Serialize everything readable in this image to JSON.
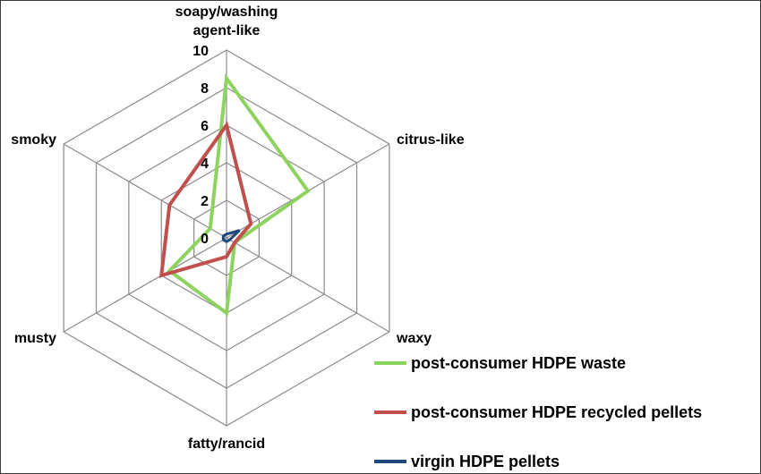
{
  "chart_data": {
    "type": "radar",
    "axes": [
      "soapy/washing agent-like",
      "citrus-like",
      "waxy",
      "fatty/rancid",
      "musty",
      "smoky"
    ],
    "axis_label_lines": [
      [
        "soapy/washing",
        "agent-like"
      ],
      [
        "citrus-like"
      ],
      [
        "waxy"
      ],
      [
        "fatty/rancid"
      ],
      [
        "musty"
      ],
      [
        "smoky"
      ]
    ],
    "rlim": [
      0,
      10
    ],
    "ticks": [
      "0",
      "2",
      "4",
      "6",
      "8",
      "10"
    ],
    "tick_values": [
      0,
      2,
      4,
      6,
      8,
      10
    ],
    "grid": true,
    "legend_position": "bottom-right",
    "series": [
      {
        "name": "post-consumer HDPE waste",
        "color": "#8dd35f",
        "values": [
          8.5,
          5.0,
          0.5,
          4.0,
          3.5,
          1.0
        ]
      },
      {
        "name": "post-consumer HDPE recycled pellets",
        "color": "#c0504d",
        "values": [
          6.0,
          1.5,
          0.5,
          1.0,
          4.0,
          3.5
        ]
      },
      {
        "name": "virgin HDPE pellets",
        "color": "#1f497d",
        "values": [
          0.2,
          0.8,
          0.2,
          0.2,
          0.2,
          0.2
        ]
      }
    ]
  }
}
